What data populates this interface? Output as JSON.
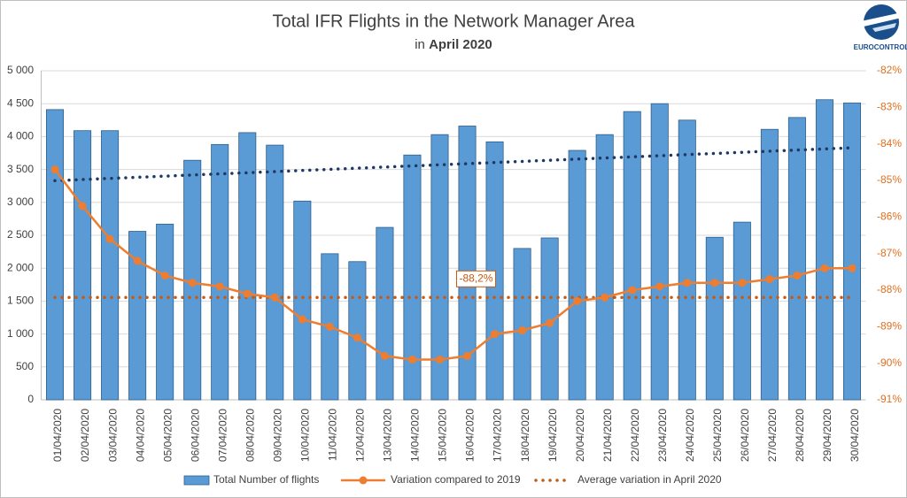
{
  "chart_data": {
    "type": "bar_line",
    "title": "Total IFR Flights in the Network Manager Area",
    "subtitle": [
      "in",
      "April 2020"
    ],
    "logo": "EUROCONTROL",
    "categories": [
      "01/04/2020",
      "02/04/2020",
      "03/04/2020",
      "04/04/2020",
      "05/04/2020",
      "06/04/2020",
      "07/04/2020",
      "08/04/2020",
      "09/04/2020",
      "10/04/2020",
      "11/04/2020",
      "12/04/2020",
      "13/04/2020",
      "14/04/2020",
      "15/04/2020",
      "16/04/2020",
      "17/04/2020",
      "18/04/2020",
      "19/04/2020",
      "20/04/2020",
      "21/04/2020",
      "22/04/2020",
      "23/04/2020",
      "24/04/2020",
      "25/04/2020",
      "26/04/2020",
      "27/04/2020",
      "28/04/2020",
      "29/04/2020",
      "30/04/2020"
    ],
    "series": [
      {
        "name": "Total Number of flights",
        "color": "#5b9bd5",
        "values": [
          4410,
          4090,
          4090,
          2560,
          2670,
          3640,
          3880,
          4060,
          3870,
          3020,
          2220,
          2100,
          2620,
          3720,
          4030,
          4160,
          3920,
          2300,
          2460,
          3790,
          4030,
          4380,
          4500,
          4250,
          2470,
          2700,
          4110,
          4290,
          4560,
          4510
        ]
      },
      {
        "name": "Variation compared to 2019",
        "color": "#ed7d31",
        "axis": "y2",
        "values": [
          -84.7,
          -85.7,
          -86.6,
          -87.2,
          -87.6,
          -87.8,
          -87.9,
          -88.1,
          -88.2,
          -88.8,
          -89.0,
          -89.3,
          -89.8,
          -89.9,
          -89.9,
          -89.8,
          -89.2,
          -89.1,
          -88.9,
          -88.3,
          -88.2,
          -88.0,
          -87.9,
          -87.8,
          -87.8,
          -87.8,
          -87.7,
          -87.6,
          -87.4,
          -87.4
        ]
      },
      {
        "name": "Average variation in April 2020",
        "color": "#c55a11",
        "axis": "y2",
        "value": -88.2,
        "value_label": "-88,2%"
      }
    ],
    "trend": {
      "color": "#1f3864",
      "values": [
        3330,
        3830
      ]
    },
    "ylim": [
      0,
      5000
    ],
    "yticks": [
      0,
      {
        "value": 500,
        "label": "500"
      },
      {
        "value": 1000,
        "label": "1 000"
      },
      {
        "value": 1500,
        "label": "1 500"
      },
      {
        "value": 2000,
        "label": "2 000"
      },
      {
        "value": 2500,
        "label": "2 500"
      },
      {
        "value": 3000,
        "label": "3 000"
      },
      {
        "value": 3500,
        "label": "3 500"
      },
      {
        "value": 4000,
        "label": "4 000"
      },
      {
        "value": 4500,
        "label": "4 500"
      },
      {
        "value": 5000,
        "label": "5 000"
      }
    ],
    "y2lim": [
      -91,
      -82
    ],
    "y2ticks": [
      {
        "value": -91,
        "label": "-91%"
      },
      {
        "value": -90,
        "label": "-90%"
      },
      {
        "value": -89,
        "label": "-89%"
      },
      {
        "value": -88,
        "label": "-88%"
      },
      {
        "value": -87,
        "label": "-87%"
      },
      {
        "value": -86,
        "label": "-86%"
      },
      {
        "value": -85,
        "label": "-85%"
      },
      {
        "value": -84,
        "label": "-84%"
      },
      {
        "value": -83,
        "label": "-83%"
      },
      {
        "value": -82,
        "label": "-82%"
      }
    ],
    "grid": true,
    "legend": "bottom"
  }
}
